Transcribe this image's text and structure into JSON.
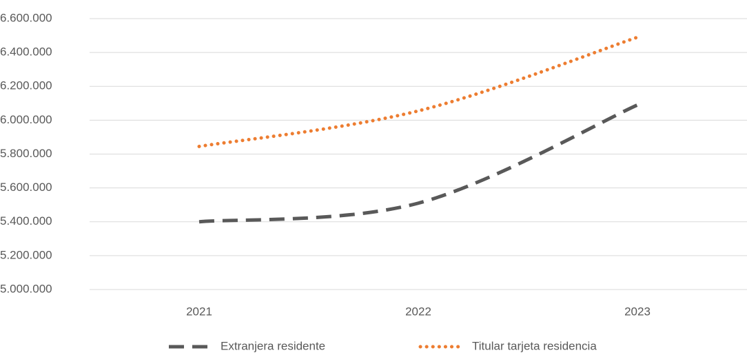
{
  "chart_data": {
    "type": "line",
    "categories": [
      "2021",
      "2022",
      "2023"
    ],
    "series": [
      {
        "name": "Extranjera residente",
        "color": "#595959",
        "style": "dashed",
        "values": [
          5400000,
          5510000,
          6090000
        ]
      },
      {
        "name": "Titular tarjeta residencia",
        "color": "#ED7D31",
        "style": "dotted",
        "values": [
          5845000,
          6055000,
          6490000
        ]
      }
    ],
    "ylim": [
      5000000,
      6600000
    ],
    "yticks": [
      {
        "value": 5000000,
        "label": "5.000.000"
      },
      {
        "value": 5200000,
        "label": "5.200.000"
      },
      {
        "value": 5400000,
        "label": "5.400.000"
      },
      {
        "value": 5600000,
        "label": "5.600.000"
      },
      {
        "value": 5800000,
        "label": "5.800.000"
      },
      {
        "value": 6000000,
        "label": "6.000.000"
      },
      {
        "value": 6200000,
        "label": "6.200.000"
      },
      {
        "value": 6400000,
        "label": "6.400.000"
      },
      {
        "value": 6600000,
        "label": "6.600.000"
      }
    ],
    "grid": true,
    "legend": "bottom"
  }
}
